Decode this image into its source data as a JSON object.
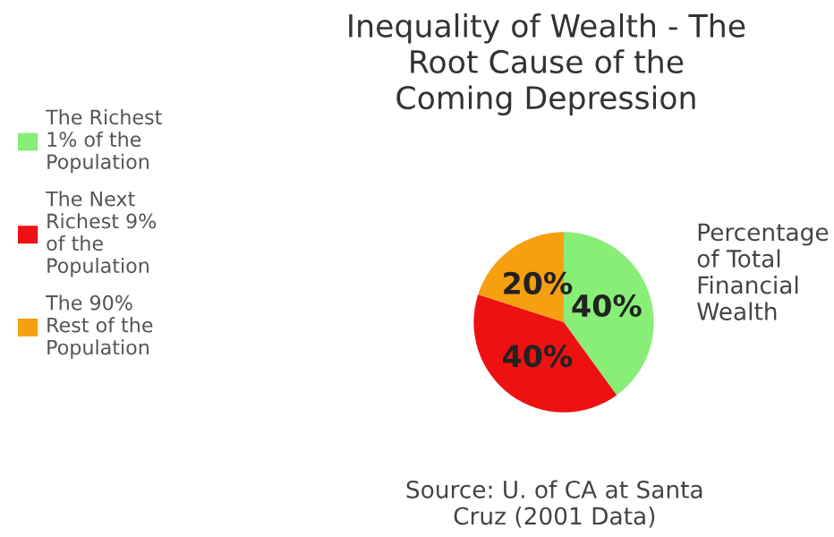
{
  "chart_data": {
    "type": "pie",
    "title": "Inequality of Wealth - The\nRoot Cause of the\nComing Depression",
    "categories": [
      "The Richest\n1% of the\nPopulation",
      "The Next\nRichest 9%\nof the\nPopulation",
      "The 90%\nRest of the\nPopulation"
    ],
    "values": [
      40,
      40,
      20
    ],
    "colors": [
      "#88ee77",
      "#ee1111",
      "#f5a010"
    ],
    "value_labels": [
      "40%",
      "40%",
      "20%"
    ],
    "legend": "left",
    "annotations": [
      "Percentage\nof Total\nFinancial\nWealth",
      "Source: U. of CA at Santa\nCruz (2001 Data)"
    ]
  }
}
